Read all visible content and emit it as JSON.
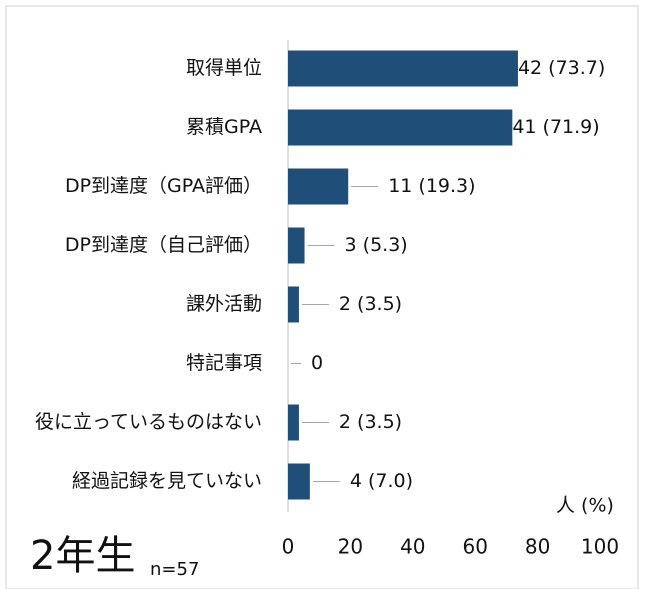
{
  "chart_data": {
    "type": "hbar",
    "title": "2年生",
    "subtitle": "n=57",
    "axis_label": "人 (%)",
    "categories": [
      "取得単位",
      "累積GPA",
      "DP到達度（GPA評価）",
      "DP到達度（自己評価）",
      "課外活動",
      "特記事項",
      "役に立っているものはない",
      "経過記録を見ていない"
    ],
    "values": [
      73.7,
      71.9,
      19.3,
      5.3,
      3.5,
      0,
      3.5,
      7.0
    ],
    "value_labels": [
      "42 (73.7)",
      "41 (71.9)",
      "11 (19.3)",
      "3 (5.3)",
      "2 (3.5)",
      "0",
      "2 (3.5)",
      "4 (7.0)"
    ],
    "color": "#1f4e79",
    "xlim": [
      0,
      100
    ],
    "xticks": [
      0,
      20,
      40,
      60,
      80,
      100
    ],
    "grid": false
  }
}
